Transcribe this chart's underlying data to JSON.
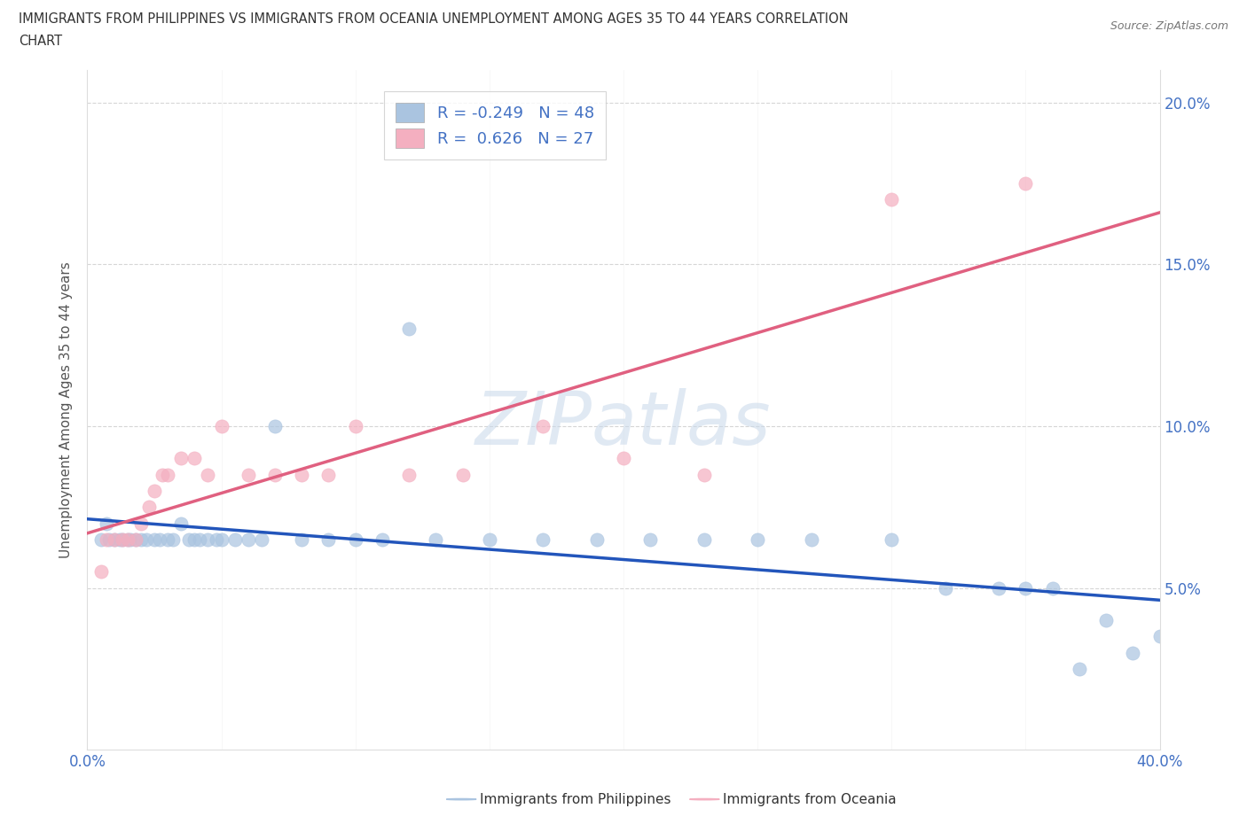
{
  "title_line1": "IMMIGRANTS FROM PHILIPPINES VS IMMIGRANTS FROM OCEANIA UNEMPLOYMENT AMONG AGES 35 TO 44 YEARS CORRELATION",
  "title_line2": "CHART",
  "source": "Source: ZipAtlas.com",
  "ylabel": "Unemployment Among Ages 35 to 44 years",
  "xlim": [
    0.0,
    0.4
  ],
  "ylim": [
    0.0,
    0.21
  ],
  "xticks": [
    0.0,
    0.05,
    0.1,
    0.15,
    0.2,
    0.25,
    0.3,
    0.35,
    0.4
  ],
  "yticks": [
    0.05,
    0.1,
    0.15,
    0.2
  ],
  "philippines_color": "#aac4e0",
  "oceania_color": "#f4afc0",
  "philippines_line_color": "#2255bb",
  "oceania_line_color": "#e06080",
  "R_philippines": -0.249,
  "N_philippines": 48,
  "R_oceania": 0.626,
  "N_oceania": 27,
  "watermark": "ZIPatlas",
  "legend_label_1": "Immigrants from Philippines",
  "legend_label_2": "Immigrants from Oceania",
  "philippines_x": [
    0.005,
    0.007,
    0.008,
    0.01,
    0.012,
    0.013,
    0.015,
    0.016,
    0.018,
    0.02,
    0.022,
    0.025,
    0.027,
    0.03,
    0.032,
    0.035,
    0.038,
    0.04,
    0.042,
    0.045,
    0.048,
    0.05,
    0.055,
    0.06,
    0.065,
    0.07,
    0.08,
    0.09,
    0.1,
    0.11,
    0.12,
    0.13,
    0.15,
    0.17,
    0.19,
    0.21,
    0.23,
    0.25,
    0.27,
    0.3,
    0.32,
    0.34,
    0.35,
    0.36,
    0.37,
    0.38,
    0.39,
    0.4
  ],
  "philippines_y": [
    0.065,
    0.07,
    0.065,
    0.065,
    0.065,
    0.065,
    0.065,
    0.065,
    0.065,
    0.065,
    0.065,
    0.065,
    0.065,
    0.065,
    0.065,
    0.07,
    0.065,
    0.065,
    0.065,
    0.065,
    0.065,
    0.065,
    0.065,
    0.065,
    0.065,
    0.1,
    0.065,
    0.065,
    0.065,
    0.065,
    0.13,
    0.065,
    0.065,
    0.065,
    0.065,
    0.065,
    0.065,
    0.065,
    0.065,
    0.065,
    0.05,
    0.05,
    0.05,
    0.05,
    0.025,
    0.04,
    0.03,
    0.035
  ],
  "oceania_x": [
    0.005,
    0.007,
    0.01,
    0.013,
    0.015,
    0.018,
    0.02,
    0.023,
    0.025,
    0.028,
    0.03,
    0.035,
    0.04,
    0.045,
    0.05,
    0.06,
    0.07,
    0.08,
    0.09,
    0.1,
    0.12,
    0.14,
    0.17,
    0.2,
    0.23,
    0.3,
    0.35
  ],
  "oceania_y": [
    0.055,
    0.065,
    0.065,
    0.065,
    0.065,
    0.065,
    0.07,
    0.075,
    0.08,
    0.085,
    0.085,
    0.09,
    0.09,
    0.085,
    0.1,
    0.085,
    0.085,
    0.085,
    0.085,
    0.1,
    0.085,
    0.085,
    0.1,
    0.09,
    0.085,
    0.17,
    0.175
  ]
}
